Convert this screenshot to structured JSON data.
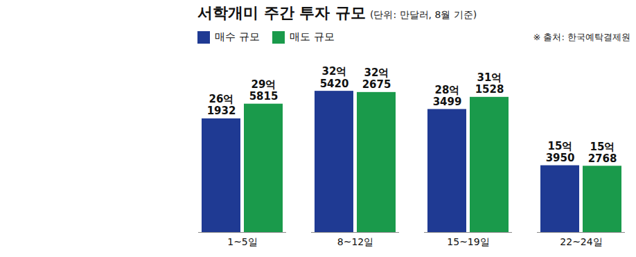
{
  "chart_data": {
    "type": "bar",
    "title": "서학개미 주간 투자 규모",
    "subtitle": "(단위: 만달러, 8월 기준)",
    "source": "※ 출처: 한국예탁결제원",
    "categories": [
      "1~5일",
      "8~12일",
      "15~19일",
      "22~24일"
    ],
    "series": [
      {
        "name": "매수 규모",
        "color": "#1f3a93",
        "values": [
          261932,
          325420,
          283499,
          153950
        ],
        "value_labels": [
          "26억 1932",
          "32억 5420",
          "28억 3499",
          "15억 3950"
        ]
      },
      {
        "name": "매도 규모",
        "color": "#1a9a4b",
        "values": [
          295815,
          322675,
          311528,
          152768
        ],
        "value_labels": [
          "29억 5815",
          "32억 2675",
          "31억 1528",
          "15억 2768"
        ]
      }
    ],
    "ylim": [
      0,
      340000
    ],
    "data_labels": true,
    "tick_labels": "x",
    "legend": "top"
  }
}
